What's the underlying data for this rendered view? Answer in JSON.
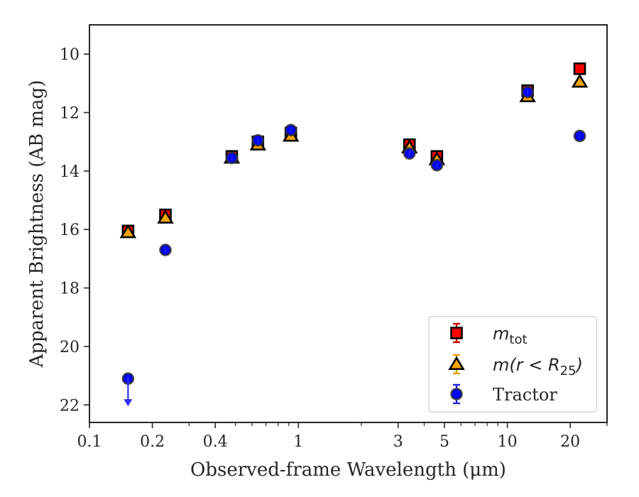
{
  "chart_data": {
    "type": "scatter",
    "xlabel": "Observed-frame Wavelength (μm)",
    "ylabel": "Apparent Brightness (AB mag)",
    "x_scale": "log",
    "y_inverted": true,
    "xlim": [
      0.1,
      30
    ],
    "ylim": [
      22.6,
      9.0
    ],
    "x_ticks": [
      {
        "value": 0.1,
        "label": "0.1"
      },
      {
        "value": 0.2,
        "label": "0.2"
      },
      {
        "value": 0.4,
        "label": "0.4"
      },
      {
        "value": 1,
        "label": "1"
      },
      {
        "value": 3,
        "label": "3"
      },
      {
        "value": 5,
        "label": "5"
      },
      {
        "value": 10,
        "label": "10"
      },
      {
        "value": 20,
        "label": "20"
      }
    ],
    "x_minor_ticks": [
      0.3,
      0.5,
      0.6,
      0.7,
      0.8,
      0.9,
      2,
      4,
      6,
      7,
      8,
      9,
      30
    ],
    "y_ticks": [
      {
        "value": 10,
        "label": "10"
      },
      {
        "value": 12,
        "label": "12"
      },
      {
        "value": 14,
        "label": "14"
      },
      {
        "value": 16,
        "label": "16"
      },
      {
        "value": 18,
        "label": "18"
      },
      {
        "value": 20,
        "label": "20"
      },
      {
        "value": 22,
        "label": "22"
      }
    ],
    "grid": false,
    "legend_position": "lower-right",
    "series": [
      {
        "name": "m_tot",
        "marker": "square",
        "color": "#ff0000",
        "edge_color": "#000000",
        "err_color": "#cc0000",
        "points": [
          {
            "x": 0.153,
            "y": 16.05
          },
          {
            "x": 0.231,
            "y": 15.5
          },
          {
            "x": 0.48,
            "y": 13.5
          },
          {
            "x": 0.64,
            "y": 13.0
          },
          {
            "x": 0.92,
            "y": 12.7
          },
          {
            "x": 3.4,
            "y": 13.1
          },
          {
            "x": 4.6,
            "y": 13.5
          },
          {
            "x": 12.5,
            "y": 11.25
          },
          {
            "x": 22.2,
            "y": 10.5
          }
        ]
      },
      {
        "name": "m(r < R25)",
        "marker": "triangle",
        "color": "#ffa500",
        "edge_color": "#000000",
        "err_color": "#e0a000",
        "points": [
          {
            "x": 0.153,
            "y": 16.1
          },
          {
            "x": 0.231,
            "y": 15.6
          },
          {
            "x": 0.48,
            "y": 13.55
          },
          {
            "x": 0.64,
            "y": 13.1
          },
          {
            "x": 0.92,
            "y": 12.8
          },
          {
            "x": 3.4,
            "y": 13.2
          },
          {
            "x": 4.6,
            "y": 13.6
          },
          {
            "x": 12.5,
            "y": 11.45
          },
          {
            "x": 22.2,
            "y": 10.95
          }
        ]
      },
      {
        "name": "Tractor",
        "marker": "circle",
        "color": "#0000ff",
        "edge_color": "#333333",
        "err_color": "#2020dd",
        "points": [
          {
            "x": 0.153,
            "y": 21.1,
            "upper_limit": true
          },
          {
            "x": 0.231,
            "y": 16.7
          },
          {
            "x": 0.48,
            "y": 13.55
          },
          {
            "x": 0.64,
            "y": 12.95
          },
          {
            "x": 0.92,
            "y": 12.6
          },
          {
            "x": 3.4,
            "y": 13.4
          },
          {
            "x": 4.6,
            "y": 13.8
          },
          {
            "x": 12.5,
            "y": 11.3
          },
          {
            "x": 22.2,
            "y": 12.8
          }
        ]
      }
    ]
  }
}
